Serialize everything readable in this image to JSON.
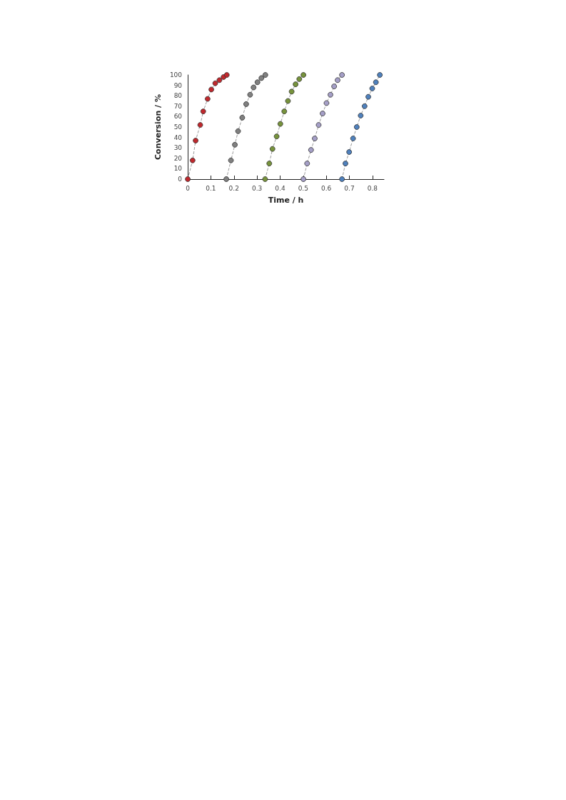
{
  "chart_data": {
    "type": "line",
    "xlabel": "Time / h",
    "ylabel": "Conversion / %",
    "xlim": [
      0,
      0.85
    ],
    "ylim": [
      0,
      100
    ],
    "xticks": [
      0,
      0.1,
      0.2,
      0.3,
      0.4,
      0.5,
      0.6,
      0.7,
      0.8
    ],
    "yticks": [
      0,
      10,
      20,
      30,
      40,
      50,
      60,
      70,
      80,
      90,
      100
    ],
    "grid": false,
    "marker": "circle",
    "line_style": "dashed",
    "series": [
      {
        "color": "#9a9a9a",
        "colors": [
          "#c0282d",
          "#c0282d",
          "#c0282d",
          "#c0282d",
          "#c0282d",
          "#c0282d",
          "#c0282d",
          "#c0282d",
          "#c0282d",
          "#c0282d",
          "#c0282d"
        ],
        "x": [
          0,
          0.021,
          0.034,
          0.054,
          0.067,
          0.086,
          0.102,
          0.119,
          0.137,
          0.155,
          0.169
        ],
        "values": [
          0,
          18,
          37,
          52,
          65,
          77,
          86,
          92,
          95,
          98,
          100
        ]
      },
      {
        "color": "#9a9a9a",
        "colors": [
          "#808080",
          "#808080",
          "#808080",
          "#808080",
          "#808080",
          "#808080",
          "#808080",
          "#808080",
          "#808080",
          "#808080",
          "#808080"
        ],
        "x": [
          0.167,
          0.187,
          0.204,
          0.218,
          0.236,
          0.253,
          0.27,
          0.285,
          0.302,
          0.319,
          0.336
        ],
        "values": [
          0,
          18,
          33,
          46,
          59,
          72,
          81,
          88,
          93,
          97,
          100
        ]
      },
      {
        "color": "#9a9a9a",
        "colors": [
          "#77933c",
          "#77933c",
          "#77933c",
          "#77933c",
          "#77933c",
          "#77933c",
          "#77933c",
          "#77933c",
          "#77933c",
          "#77933c",
          "#77933c"
        ],
        "x": [
          0.335,
          0.353,
          0.367,
          0.385,
          0.401,
          0.418,
          0.434,
          0.45,
          0.467,
          0.483,
          0.501
        ],
        "values": [
          0,
          15,
          29,
          41,
          53,
          65,
          75,
          84,
          91,
          96,
          100
        ]
      },
      {
        "color": "#9a9a9a",
        "colors": [
          "#a59fc7",
          "#a59fc7",
          "#a59fc7",
          "#a59fc7",
          "#a59fc7",
          "#a59fc7",
          "#a59fc7",
          "#a59fc7",
          "#a59fc7",
          "#a59fc7",
          "#a59fc7"
        ],
        "x": [
          0.501,
          0.517,
          0.534,
          0.55,
          0.567,
          0.584,
          0.601,
          0.618,
          0.634,
          0.649,
          0.668
        ],
        "values": [
          0,
          15,
          28,
          39,
          52,
          63,
          73,
          81,
          89,
          95,
          100
        ]
      },
      {
        "color": "#9a9a9a",
        "colors": [
          "#4f81bd",
          "#4f81bd",
          "#4f81bd",
          "#4f81bd",
          "#4f81bd",
          "#4f81bd",
          "#4f81bd",
          "#4f81bd",
          "#4f81bd",
          "#4f81bd",
          "#4f81bd"
        ],
        "x": [
          0.668,
          0.683,
          0.699,
          0.716,
          0.732,
          0.749,
          0.766,
          0.782,
          0.799,
          0.815,
          0.832
        ],
        "values": [
          0,
          15,
          26,
          39,
          50,
          61,
          70,
          79,
          87,
          93,
          100
        ]
      }
    ]
  }
}
